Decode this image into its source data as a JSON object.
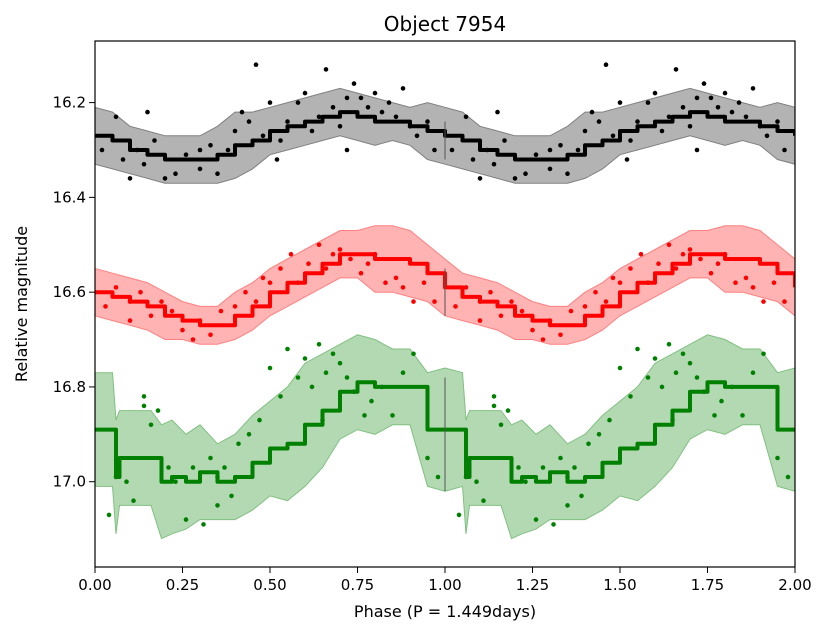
{
  "chart_data": {
    "type": "line",
    "title": "Object 7954",
    "xlabel": "Phase (P = 1.449days)",
    "ylabel": "Relative magnitude",
    "xlim": [
      0.0,
      2.0
    ],
    "ylim": [
      17.18,
      16.07
    ],
    "y_inverted": true,
    "grid": false,
    "period_days": 1.449,
    "x_ticks": [
      "0.00",
      "0.25",
      "0.50",
      "0.75",
      "1.00",
      "1.25",
      "1.50",
      "1.75",
      "2.00"
    ],
    "y_ticks": [
      "16.2",
      "16.4",
      "16.6",
      "16.8",
      "17.0"
    ],
    "phase_divider_x": 1.0,
    "series": [
      {
        "name": "black",
        "color": "#000000",
        "band_color": "#808080",
        "model_phase": [
          0.0,
          0.05,
          0.1,
          0.15,
          0.2,
          0.25,
          0.3,
          0.35,
          0.4,
          0.45,
          0.5,
          0.55,
          0.6,
          0.65,
          0.7,
          0.75,
          0.8,
          0.85,
          0.9,
          0.95,
          1.0
        ],
        "model_mag": [
          16.27,
          16.28,
          16.3,
          16.31,
          16.32,
          16.32,
          16.32,
          16.31,
          16.29,
          16.28,
          16.26,
          16.25,
          16.24,
          16.23,
          16.22,
          16.23,
          16.24,
          16.24,
          16.25,
          16.26,
          16.27
        ],
        "band_width": [
          0.06,
          0.06,
          0.05,
          0.05,
          0.05,
          0.05,
          0.05,
          0.06,
          0.07,
          0.06,
          0.05,
          0.05,
          0.05,
          0.05,
          0.05,
          0.05,
          0.05,
          0.04,
          0.04,
          0.06,
          0.06
        ],
        "points": [
          [
            0.06,
            16.23
          ],
          [
            0.08,
            16.32
          ],
          [
            0.1,
            16.36
          ],
          [
            0.12,
            16.3
          ],
          [
            0.14,
            16.33
          ],
          [
            0.17,
            16.28
          ],
          [
            0.2,
            16.36
          ],
          [
            0.23,
            16.35
          ],
          [
            0.26,
            16.31
          ],
          [
            0.3,
            16.34
          ],
          [
            0.33,
            16.29
          ],
          [
            0.35,
            16.35
          ],
          [
            0.38,
            16.3
          ],
          [
            0.4,
            16.26
          ],
          [
            0.42,
            16.22
          ],
          [
            0.44,
            16.24
          ],
          [
            0.46,
            16.12
          ],
          [
            0.48,
            16.27
          ],
          [
            0.5,
            16.2
          ],
          [
            0.53,
            16.28
          ],
          [
            0.55,
            16.24
          ],
          [
            0.58,
            16.2
          ],
          [
            0.6,
            16.18
          ],
          [
            0.62,
            16.26
          ],
          [
            0.64,
            16.23
          ],
          [
            0.66,
            16.13
          ],
          [
            0.68,
            16.21
          ],
          [
            0.7,
            16.25
          ],
          [
            0.72,
            16.19
          ],
          [
            0.74,
            16.16
          ],
          [
            0.76,
            16.19
          ],
          [
            0.78,
            16.21
          ],
          [
            0.8,
            16.18
          ],
          [
            0.82,
            16.22
          ],
          [
            0.84,
            16.2
          ],
          [
            0.86,
            16.23
          ],
          [
            0.88,
            16.17
          ],
          [
            0.9,
            16.25
          ],
          [
            0.92,
            16.27
          ],
          [
            0.95,
            16.24
          ],
          [
            0.97,
            16.3
          ],
          [
            0.72,
            16.3
          ],
          [
            0.3,
            16.3
          ],
          [
            0.52,
            16.32
          ],
          [
            0.02,
            16.3
          ],
          [
            0.15,
            16.22
          ]
        ]
      },
      {
        "name": "red",
        "color": "#ff0000",
        "band_color": "#ff8080",
        "model_phase": [
          0.0,
          0.05,
          0.1,
          0.15,
          0.2,
          0.25,
          0.3,
          0.35,
          0.4,
          0.45,
          0.5,
          0.55,
          0.6,
          0.65,
          0.7,
          0.75,
          0.8,
          0.85,
          0.9,
          0.95,
          1.0
        ],
        "model_mag": [
          16.6,
          16.61,
          16.62,
          16.63,
          16.65,
          16.66,
          16.67,
          16.67,
          16.65,
          16.63,
          16.6,
          16.58,
          16.56,
          16.54,
          16.52,
          16.52,
          16.53,
          16.53,
          16.54,
          16.56,
          16.59
        ],
        "band_width": [
          0.05,
          0.05,
          0.05,
          0.05,
          0.05,
          0.04,
          0.04,
          0.04,
          0.05,
          0.05,
          0.05,
          0.05,
          0.05,
          0.05,
          0.05,
          0.05,
          0.07,
          0.07,
          0.07,
          0.06,
          0.06
        ],
        "points": [
          [
            0.03,
            16.63
          ],
          [
            0.06,
            16.59
          ],
          [
            0.1,
            16.66
          ],
          [
            0.13,
            16.6
          ],
          [
            0.16,
            16.65
          ],
          [
            0.19,
            16.62
          ],
          [
            0.22,
            16.64
          ],
          [
            0.25,
            16.68
          ],
          [
            0.28,
            16.7
          ],
          [
            0.3,
            16.66
          ],
          [
            0.33,
            16.69
          ],
          [
            0.36,
            16.64
          ],
          [
            0.4,
            16.63
          ],
          [
            0.43,
            16.6
          ],
          [
            0.46,
            16.62
          ],
          [
            0.48,
            16.57
          ],
          [
            0.5,
            16.58
          ],
          [
            0.53,
            16.55
          ],
          [
            0.56,
            16.52
          ],
          [
            0.58,
            16.58
          ],
          [
            0.61,
            16.54
          ],
          [
            0.64,
            16.5
          ],
          [
            0.66,
            16.55
          ],
          [
            0.68,
            16.52
          ],
          [
            0.7,
            16.51
          ],
          [
            0.73,
            16.53
          ],
          [
            0.76,
            16.56
          ],
          [
            0.78,
            16.54
          ],
          [
            0.8,
            16.52
          ],
          [
            0.83,
            16.58
          ],
          [
            0.86,
            16.57
          ],
          [
            0.88,
            16.59
          ],
          [
            0.91,
            16.62
          ],
          [
            0.94,
            16.58
          ],
          [
            0.97,
            16.62
          ],
          [
            0.1,
            16.62
          ]
        ]
      },
      {
        "name": "green",
        "color": "#008000",
        "band_color": "#80c080",
        "model_phase": [
          0.0,
          0.05,
          0.06,
          0.07,
          0.12,
          0.16,
          0.19,
          0.22,
          0.26,
          0.3,
          0.35,
          0.4,
          0.45,
          0.5,
          0.55,
          0.6,
          0.65,
          0.7,
          0.75,
          0.8,
          0.85,
          0.9,
          0.95,
          1.0
        ],
        "model_mag": [
          16.89,
          16.89,
          16.99,
          16.95,
          16.95,
          16.95,
          17.0,
          16.99,
          17.0,
          16.98,
          17.0,
          16.99,
          16.96,
          16.93,
          16.92,
          16.88,
          16.85,
          16.81,
          16.79,
          16.8,
          16.8,
          16.8,
          16.89,
          16.89
        ],
        "band_width": [
          0.12,
          0.12,
          0.12,
          0.1,
          0.1,
          0.1,
          0.12,
          0.12,
          0.1,
          0.1,
          0.08,
          0.09,
          0.1,
          0.1,
          0.12,
          0.13,
          0.12,
          0.1,
          0.1,
          0.1,
          0.08,
          0.08,
          0.12,
          0.13
        ],
        "points": [
          [
            0.04,
            17.07
          ],
          [
            0.06,
            16.99
          ],
          [
            0.09,
            17.0
          ],
          [
            0.11,
            17.04
          ],
          [
            0.14,
            16.84
          ],
          [
            0.16,
            16.88
          ],
          [
            0.18,
            16.85
          ],
          [
            0.21,
            16.97
          ],
          [
            0.23,
            17.0
          ],
          [
            0.26,
            17.08
          ],
          [
            0.28,
            16.97
          ],
          [
            0.31,
            17.09
          ],
          [
            0.33,
            16.95
          ],
          [
            0.35,
            17.05
          ],
          [
            0.37,
            16.97
          ],
          [
            0.39,
            17.03
          ],
          [
            0.41,
            16.92
          ],
          [
            0.44,
            16.9
          ],
          [
            0.47,
            16.87
          ],
          [
            0.5,
            16.76
          ],
          [
            0.53,
            16.82
          ],
          [
            0.55,
            16.72
          ],
          [
            0.58,
            16.78
          ],
          [
            0.6,
            16.74
          ],
          [
            0.62,
            16.8
          ],
          [
            0.64,
            16.71
          ],
          [
            0.66,
            16.77
          ],
          [
            0.68,
            16.73
          ],
          [
            0.7,
            16.75
          ],
          [
            0.72,
            16.78
          ],
          [
            0.74,
            16.81
          ],
          [
            0.77,
            16.86
          ],
          [
            0.79,
            16.83
          ],
          [
            0.82,
            16.8
          ],
          [
            0.85,
            16.86
          ],
          [
            0.88,
            16.77
          ],
          [
            0.91,
            16.73
          ],
          [
            0.95,
            16.95
          ],
          [
            0.98,
            16.99
          ],
          [
            0.65,
            16.87
          ],
          [
            0.35,
            16.99
          ],
          [
            0.14,
            16.82
          ]
        ]
      }
    ]
  }
}
